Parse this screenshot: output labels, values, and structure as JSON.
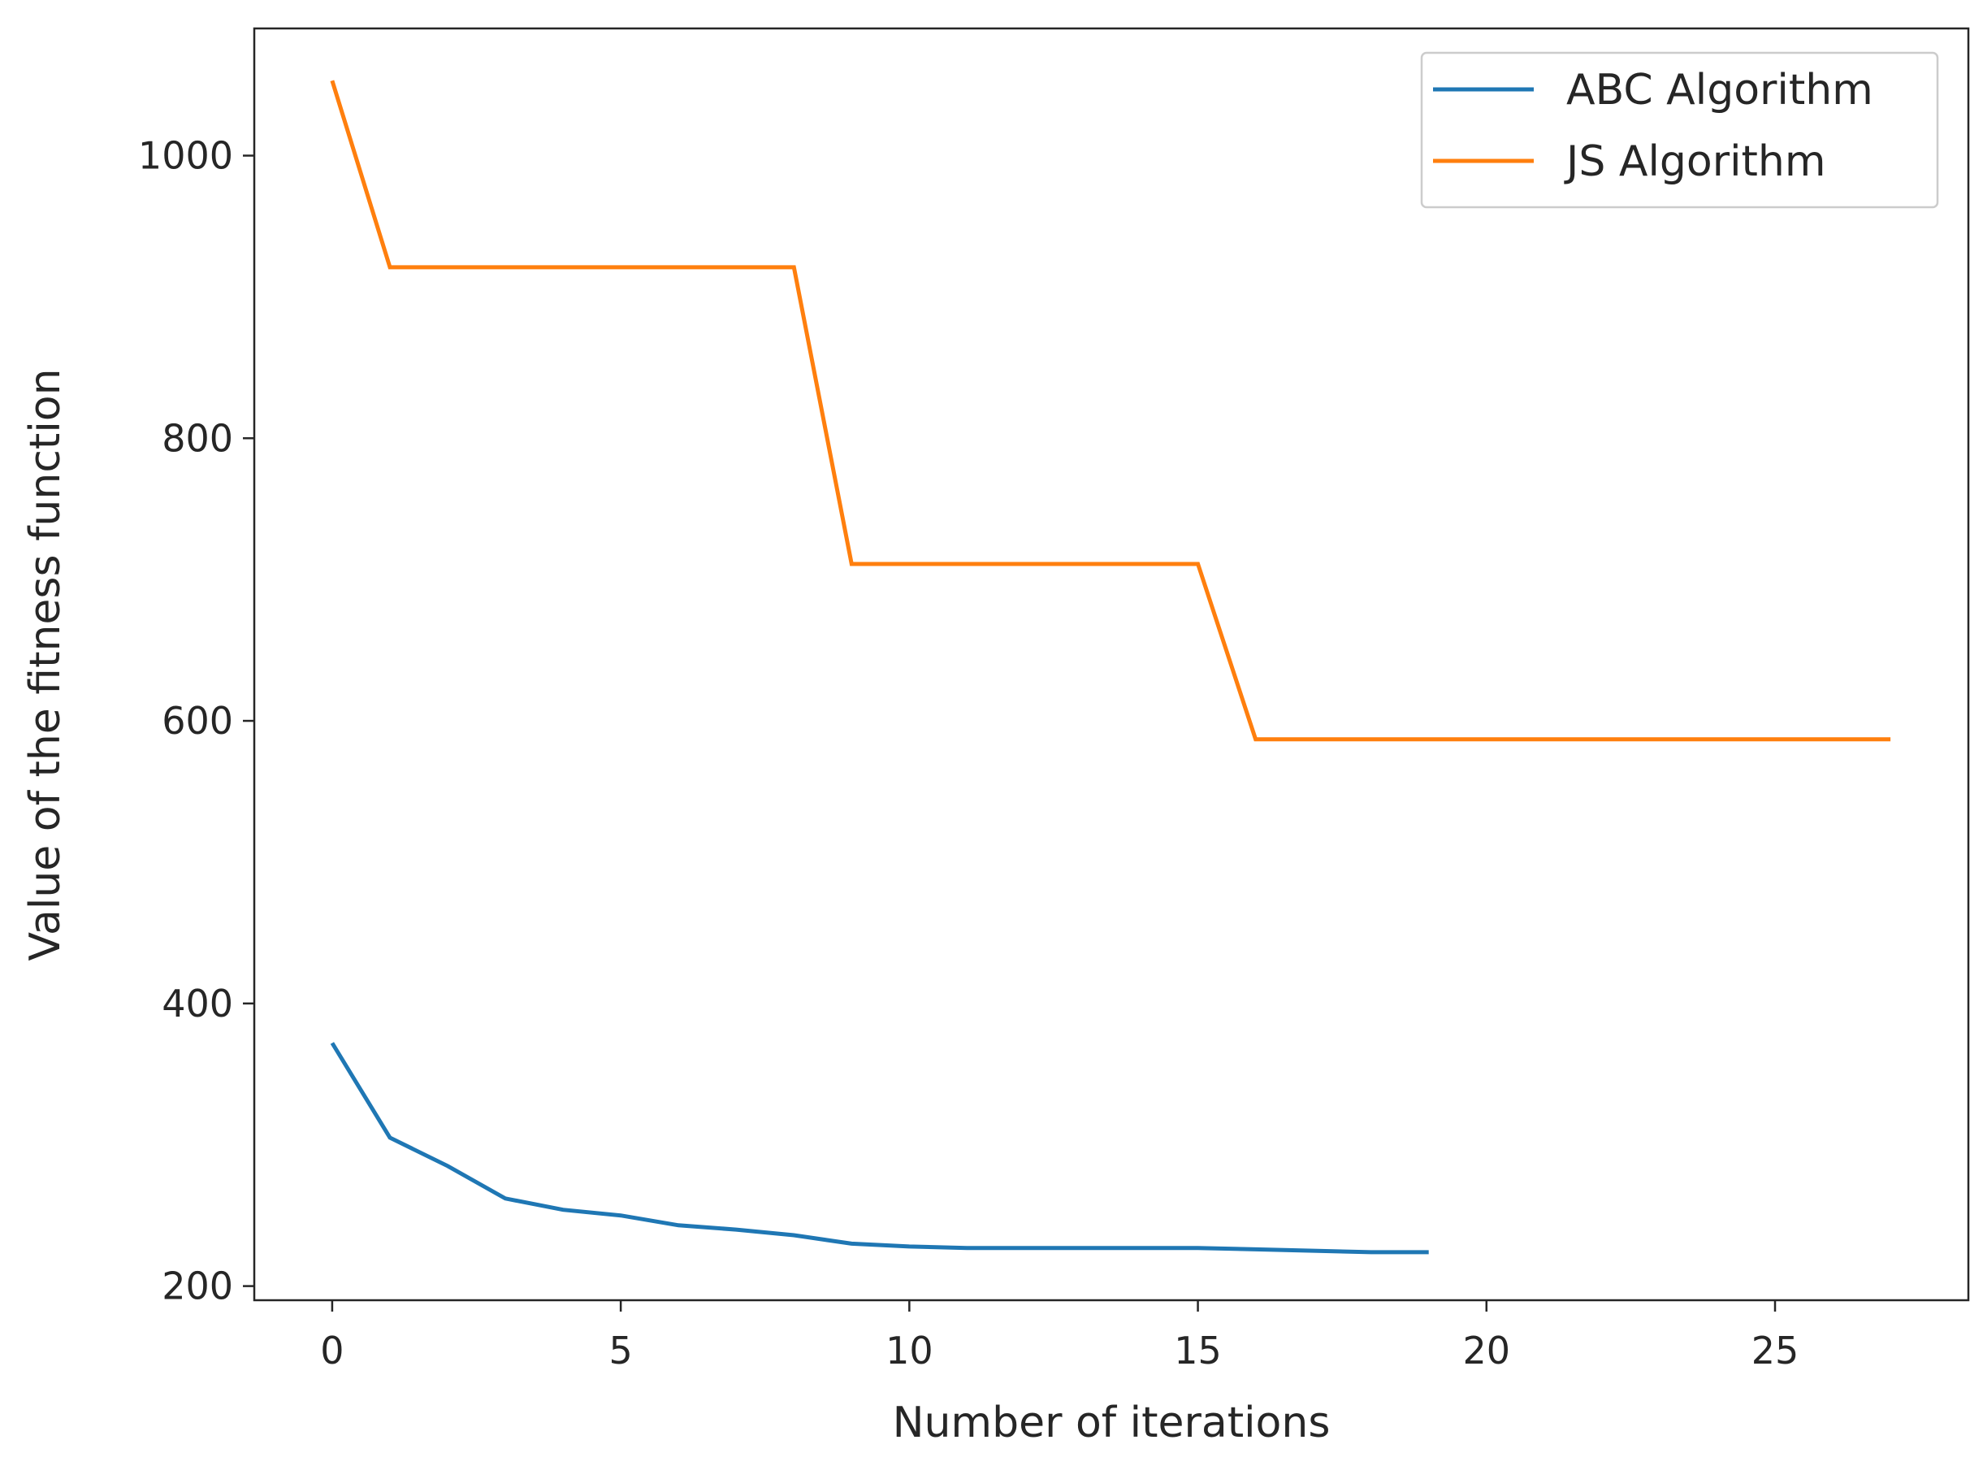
{
  "chart_data": {
    "type": "line",
    "title": "",
    "xlabel": "Number of iterations",
    "ylabel": "Value of the fitness function",
    "xlim": [
      -1.35,
      28.35
    ],
    "ylim": [
      190,
      1090
    ],
    "xticks": [
      0,
      5,
      10,
      15,
      20,
      25
    ],
    "yticks": [
      200,
      400,
      600,
      800,
      1000
    ],
    "grid": false,
    "legend_position": "top-right",
    "series": [
      {
        "name": "ABC Algorithm",
        "color": "#1f77b4",
        "x": [
          0,
          1,
          2,
          3,
          4,
          5,
          6,
          7,
          8,
          9,
          10,
          11,
          12,
          13,
          14,
          15,
          16,
          17,
          18,
          19
        ],
        "y": [
          372,
          305,
          285,
          262,
          254,
          250,
          243,
          240,
          236,
          230,
          228,
          227,
          227,
          227,
          227,
          227,
          226,
          225,
          224,
          224
        ]
      },
      {
        "name": "JS Algorithm",
        "color": "#ff7f0e",
        "x": [
          0,
          1,
          2,
          3,
          4,
          5,
          6,
          7,
          8,
          9,
          10,
          11,
          12,
          13,
          14,
          15,
          16,
          17,
          18,
          19,
          20,
          21,
          22,
          23,
          24,
          25,
          26,
          27
        ],
        "y": [
          1053,
          921,
          921,
          921,
          921,
          921,
          921,
          921,
          921,
          711,
          711,
          711,
          711,
          711,
          711,
          711,
          587,
          587,
          587,
          587,
          587,
          587,
          587,
          587,
          587,
          587,
          587,
          587
        ]
      }
    ]
  }
}
